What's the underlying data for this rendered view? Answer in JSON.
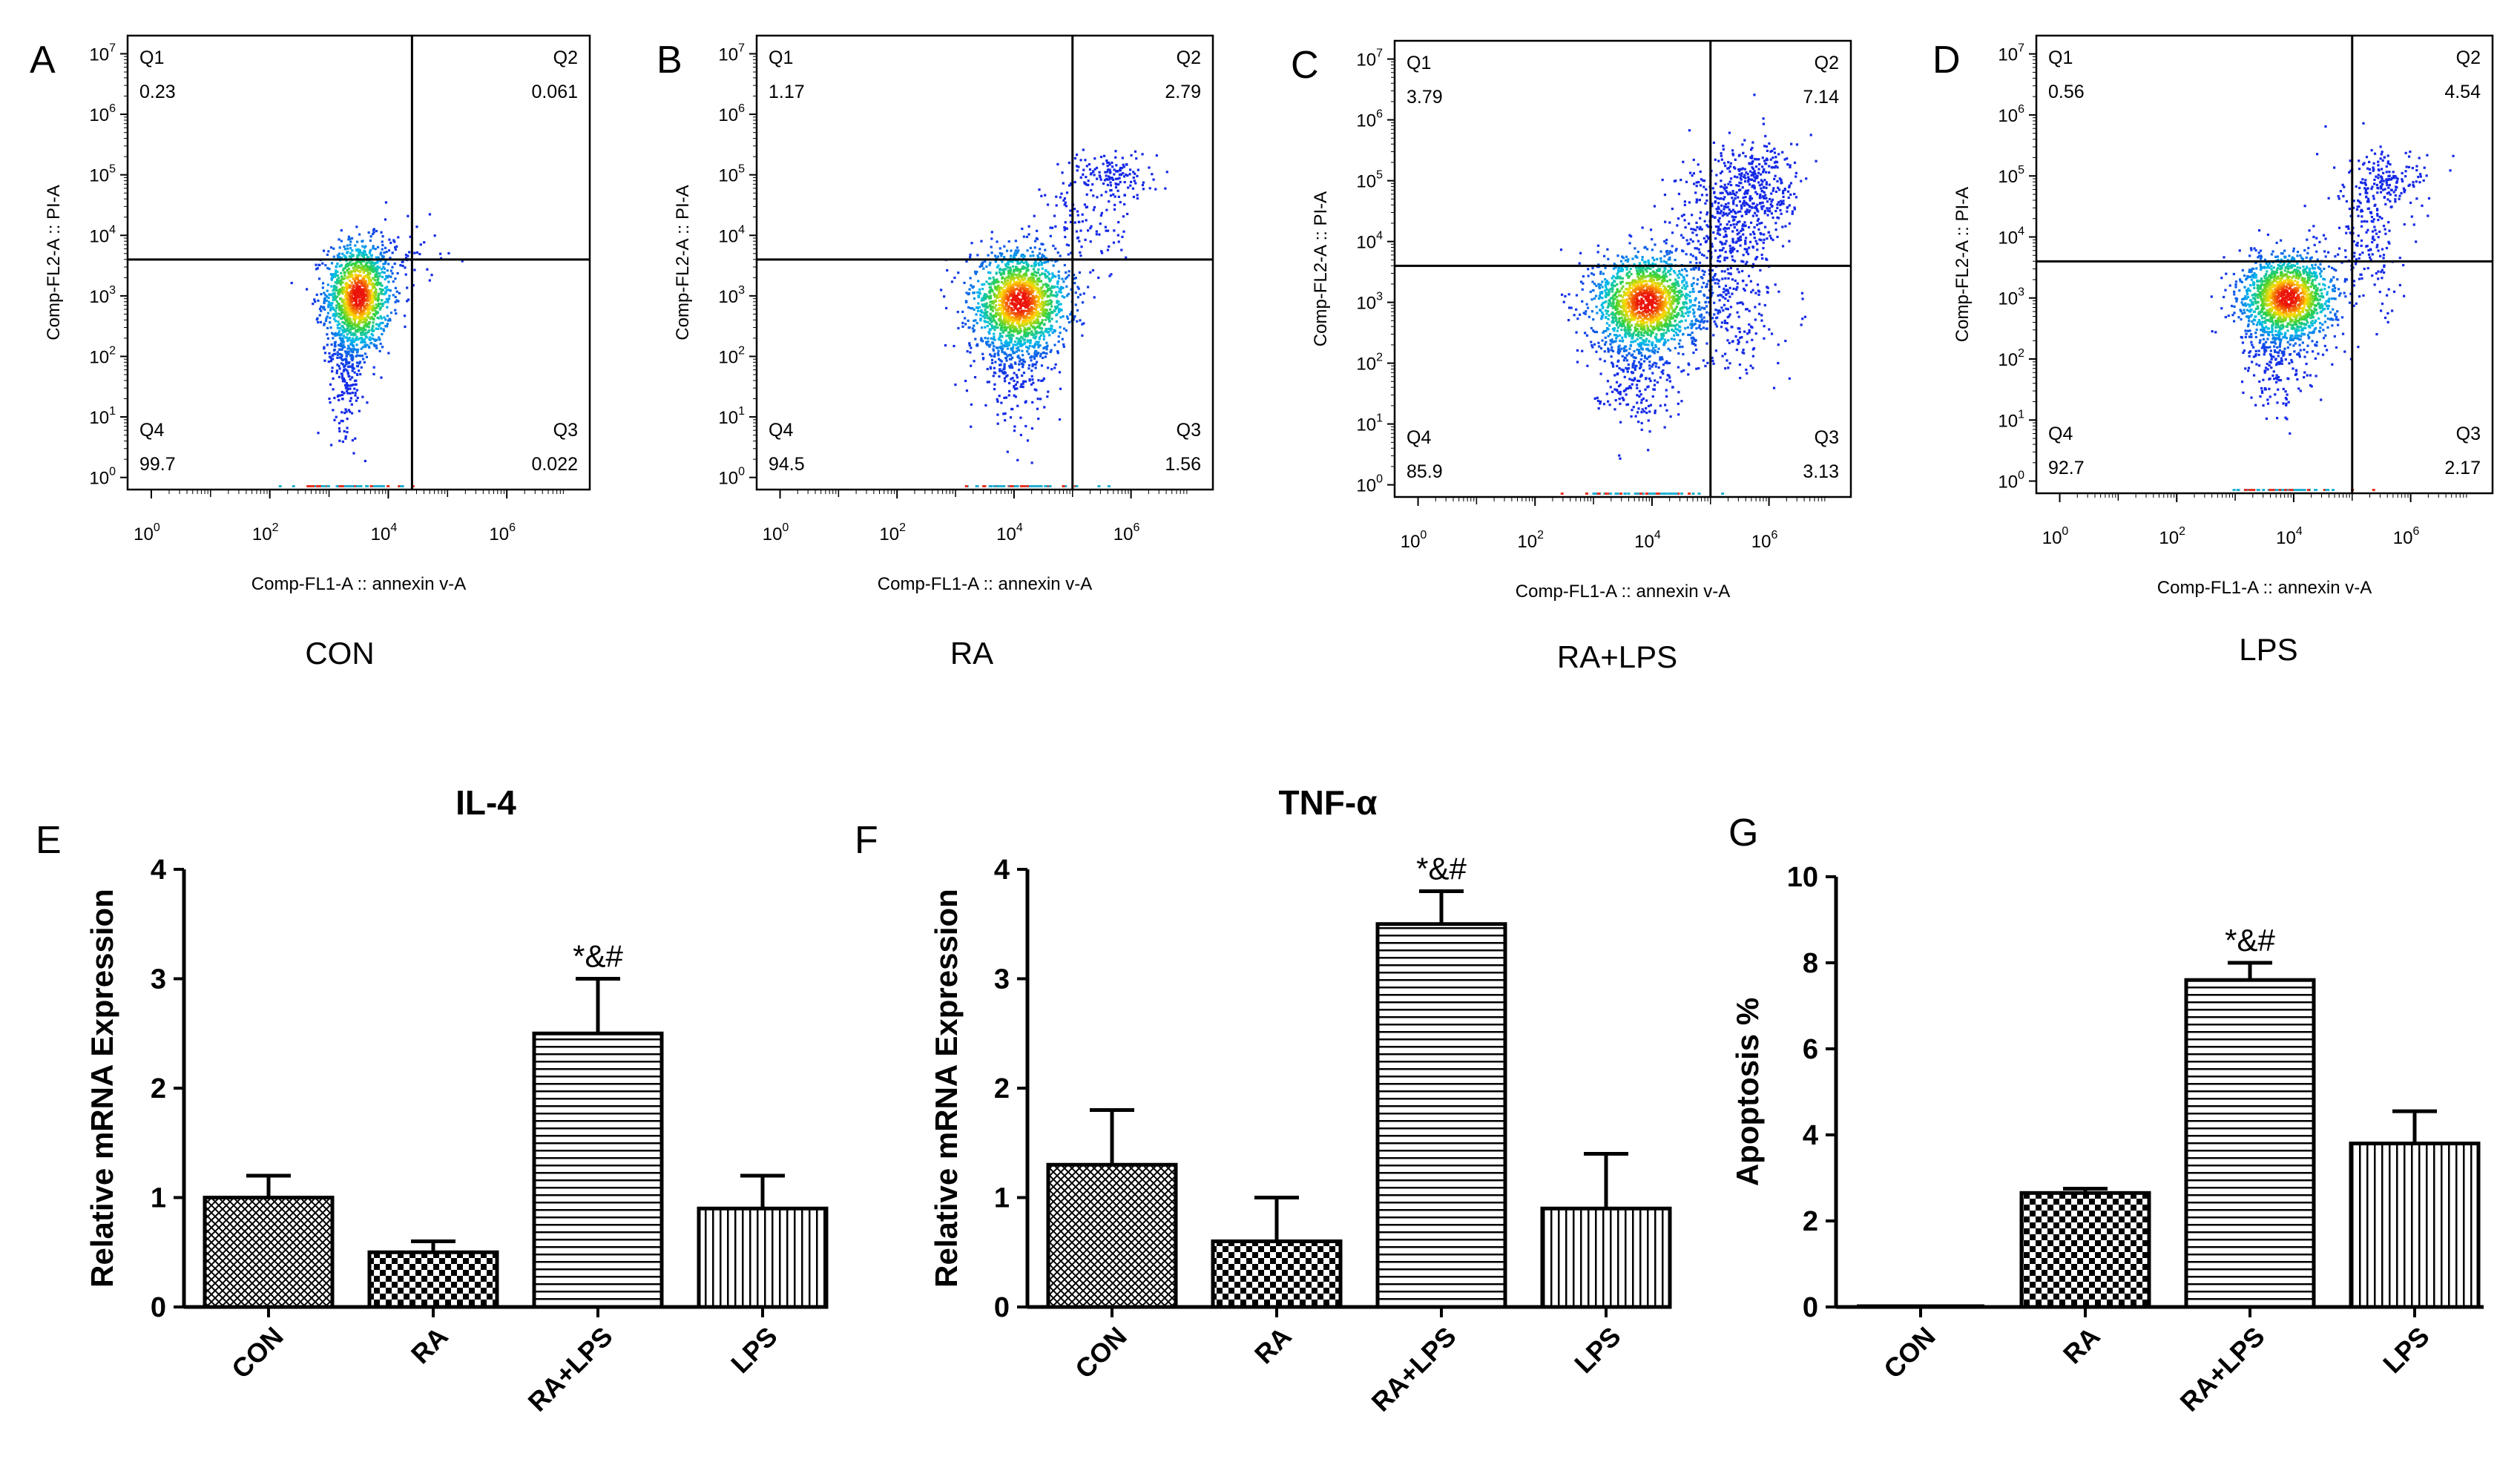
{
  "chart_data": [
    {
      "type": "scatter",
      "panel": "A",
      "condition_label": "CON",
      "xlabel": "Comp-FL1-A :: annexin v-A",
      "ylabel": "Comp-FL2-A :: PI-A",
      "x_ticks": [
        "10^0",
        "10^2",
        "10^4",
        "10^6"
      ],
      "y_ticks": [
        "10^0",
        "10^1",
        "10^2",
        "10^3",
        "10^4",
        "10^5",
        "10^6",
        "10^7"
      ],
      "gate": {
        "x": 4.4,
        "y": 3.6
      },
      "quadrants": [
        {
          "name": "Q1",
          "value": "0.23"
        },
        {
          "name": "Q2",
          "value": "0.061"
        },
        {
          "name": "Q3",
          "value": "0.022"
        },
        {
          "name": "Q4",
          "value": "99.7"
        }
      ],
      "populations": [
        {
          "cx": 3.5,
          "cy": 3.0,
          "sx": 0.28,
          "sy": 0.45,
          "n": 1200
        },
        {
          "cx": 3.3,
          "cy": 2.0,
          "sx": 0.15,
          "sy": 0.6,
          "n": 300
        },
        {
          "cx": 4.1,
          "cy": 3.6,
          "sx": 0.4,
          "sy": 0.3,
          "n": 80
        }
      ]
    },
    {
      "type": "scatter",
      "panel": "B",
      "condition_label": "RA",
      "xlabel": "Comp-FL1-A :: annexin v-A",
      "ylabel": "Comp-FL2-A :: PI-A",
      "x_ticks": [
        "10^0",
        "10^2",
        "10^4",
        "10^6"
      ],
      "y_ticks": [
        "10^0",
        "10^1",
        "10^2",
        "10^3",
        "10^4",
        "10^5",
        "10^6",
        "10^7"
      ],
      "gate": {
        "x": 5.0,
        "y": 3.6
      },
      "quadrants": [
        {
          "name": "Q1",
          "value": "1.17"
        },
        {
          "name": "Q2",
          "value": "2.79"
        },
        {
          "name": "Q3",
          "value": "1.56"
        },
        {
          "name": "Q4",
          "value": "94.5"
        }
      ],
      "populations": [
        {
          "cx": 4.1,
          "cy": 2.9,
          "sx": 0.42,
          "sy": 0.42,
          "n": 1500
        },
        {
          "cx": 4.0,
          "cy": 2.0,
          "sx": 0.3,
          "sy": 0.5,
          "n": 300
        },
        {
          "cx": 5.7,
          "cy": 5.0,
          "sx": 0.35,
          "sy": 0.2,
          "n": 140
        },
        {
          "cx": 5.2,
          "cy": 4.2,
          "sx": 0.35,
          "sy": 0.5,
          "n": 110
        }
      ]
    },
    {
      "type": "scatter",
      "panel": "C",
      "condition_label": "RA+LPS",
      "xlabel": "Comp-FL1-A :: annexin v-A",
      "ylabel": "Comp-FL2-A :: PI-A",
      "x_ticks": [
        "10^0",
        "10^2",
        "10^4",
        "10^6"
      ],
      "y_ticks": [
        "10^0",
        "10^1",
        "10^2",
        "10^3",
        "10^4",
        "10^5",
        "10^6",
        "10^7"
      ],
      "gate": {
        "x": 5.0,
        "y": 3.6
      },
      "quadrants": [
        {
          "name": "Q1",
          "value": "3.79"
        },
        {
          "name": "Q2",
          "value": "7.14"
        },
        {
          "name": "Q3",
          "value": "3.13"
        },
        {
          "name": "Q4",
          "value": "85.9"
        }
      ],
      "populations": [
        {
          "cx": 3.9,
          "cy": 3.0,
          "sx": 0.45,
          "sy": 0.4,
          "n": 1500
        },
        {
          "cx": 3.7,
          "cy": 2.0,
          "sx": 0.35,
          "sy": 0.5,
          "n": 300
        },
        {
          "cx": 5.3,
          "cy": 4.3,
          "sx": 0.45,
          "sy": 0.6,
          "n": 450
        },
        {
          "cx": 5.9,
          "cy": 4.9,
          "sx": 0.35,
          "sy": 0.4,
          "n": 250
        },
        {
          "cx": 5.3,
          "cy": 2.8,
          "sx": 0.4,
          "sy": 0.5,
          "n": 200
        }
      ]
    },
    {
      "type": "scatter",
      "panel": "D",
      "condition_label": "LPS",
      "xlabel": "Comp-FL1-A :: annexin v-A",
      "ylabel": "Comp-FL2-A :: PI-A",
      "x_ticks": [
        "10^0",
        "10^2",
        "10^4",
        "10^6"
      ],
      "y_ticks": [
        "10^0",
        "10^1",
        "10^2",
        "10^3",
        "10^4",
        "10^5",
        "10^6",
        "10^7"
      ],
      "gate": {
        "x": 5.0,
        "y": 3.6
      },
      "quadrants": [
        {
          "name": "Q1",
          "value": "0.56"
        },
        {
          "name": "Q2",
          "value": "4.54"
        },
        {
          "name": "Q3",
          "value": "2.17"
        },
        {
          "name": "Q4",
          "value": "92.7"
        }
      ],
      "populations": [
        {
          "cx": 3.9,
          "cy": 3.0,
          "sx": 0.4,
          "sy": 0.35,
          "n": 1400
        },
        {
          "cx": 3.7,
          "cy": 2.1,
          "sx": 0.3,
          "sy": 0.45,
          "n": 250
        },
        {
          "cx": 5.6,
          "cy": 4.9,
          "sx": 0.35,
          "sy": 0.25,
          "n": 160
        },
        {
          "cx": 5.3,
          "cy": 3.9,
          "sx": 0.35,
          "sy": 0.6,
          "n": 180
        }
      ]
    },
    {
      "type": "bar",
      "panel": "E",
      "title": "IL-4",
      "ylabel": "Relative mRNA Expression",
      "categories": [
        "CON",
        "RA",
        "RA+LPS",
        "LPS"
      ],
      "values": [
        1.0,
        0.5,
        2.5,
        0.9
      ],
      "errors": [
        0.2,
        0.1,
        0.5,
        0.3
      ],
      "patterns": [
        "crosshatch",
        "checker",
        "horizontal",
        "vertical"
      ],
      "significance": [
        "",
        "",
        "*&#",
        ""
      ],
      "ylim": [
        0,
        4
      ],
      "yticks": [
        "0",
        "1",
        "2",
        "3",
        "4"
      ]
    },
    {
      "type": "bar",
      "panel": "F",
      "title": "TNF-α",
      "ylabel": "Relative mRNA Expression",
      "categories": [
        "CON",
        "RA",
        "RA+LPS",
        "LPS"
      ],
      "values": [
        1.3,
        0.6,
        3.5,
        0.9
      ],
      "errors": [
        0.5,
        0.4,
        0.3,
        0.5
      ],
      "patterns": [
        "crosshatch",
        "checker",
        "horizontal",
        "vertical"
      ],
      "significance": [
        "",
        "",
        "*&#",
        ""
      ],
      "ylim": [
        0,
        4
      ],
      "yticks": [
        "0",
        "1",
        "2",
        "3",
        "4"
      ]
    },
    {
      "type": "bar",
      "panel": "G",
      "title": "",
      "ylabel": "Apoptosis %",
      "categories": [
        "CON",
        "RA",
        "RA+LPS",
        "LPS"
      ],
      "values": [
        0.0,
        2.65,
        7.6,
        3.8
      ],
      "errors": [
        0.0,
        0.1,
        0.4,
        0.75
      ],
      "patterns": [
        "crosshatch",
        "checker",
        "horizontal",
        "vertical"
      ],
      "significance": [
        "",
        "",
        "*&#",
        ""
      ],
      "ylim": [
        0,
        10
      ],
      "yticks": [
        "0",
        "2",
        "4",
        "6",
        "8",
        "10"
      ]
    }
  ]
}
